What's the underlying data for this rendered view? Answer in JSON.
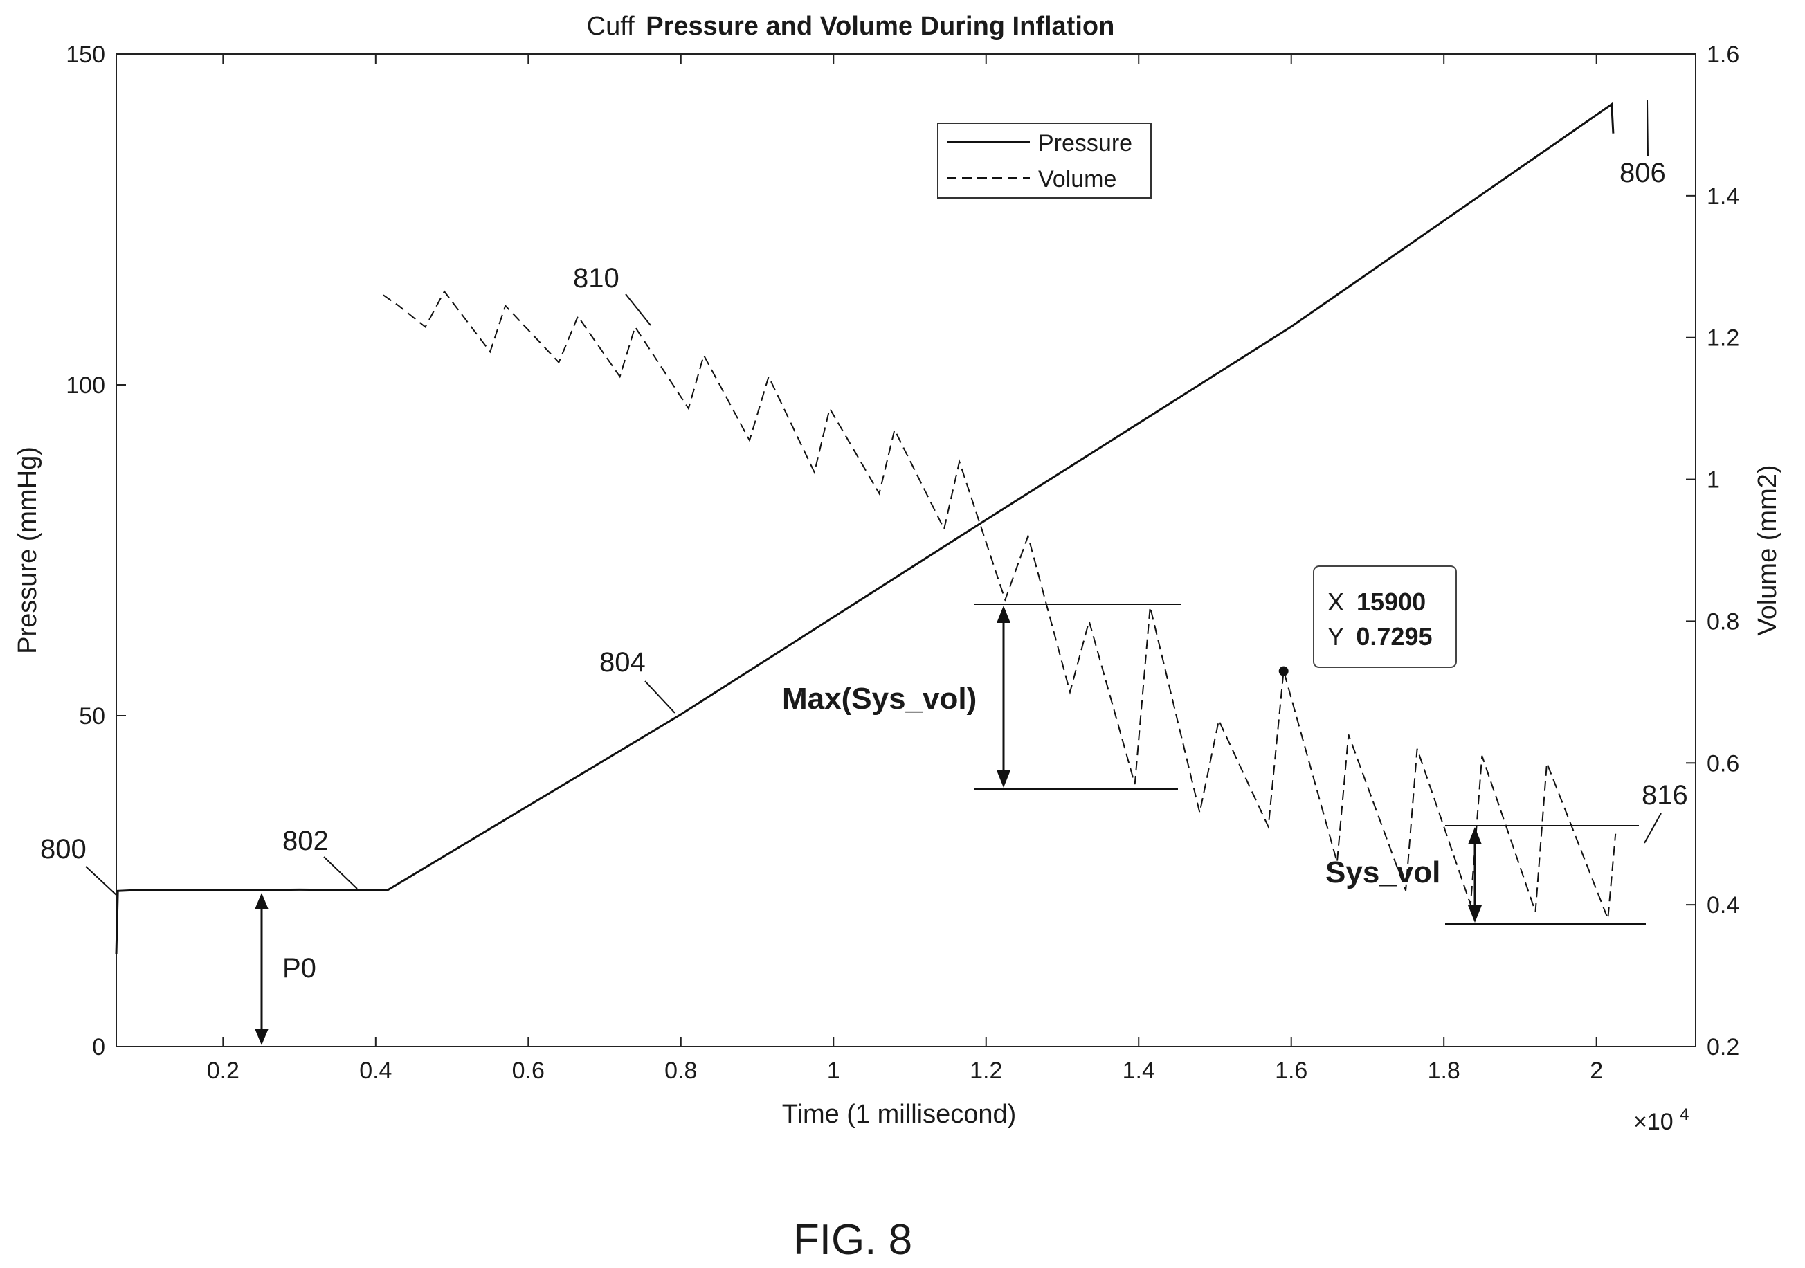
{
  "chart_data": {
    "type": "line",
    "title": "Cuff Pressure and Volume During Inflation",
    "title_prefix": "Cuff",
    "title_main": "Pressure and Volume During Inflation",
    "xlabel": "Time (1 millisecond)",
    "xscale_note": "×10",
    "xscale_exp": "4",
    "ylabel_left": "Pressure (mmHg)",
    "ylabel_right": "Volume (mm2)",
    "xlim": [
      600,
      21300
    ],
    "ylim_left": [
      0,
      150
    ],
    "ylim_right": [
      0.2,
      1.6
    ],
    "x_ticks": [
      {
        "v": 2000,
        "label": "0.2"
      },
      {
        "v": 4000,
        "label": "0.4"
      },
      {
        "v": 6000,
        "label": "0.6"
      },
      {
        "v": 8000,
        "label": "0.8"
      },
      {
        "v": 10000,
        "label": "1"
      },
      {
        "v": 12000,
        "label": "1.2"
      },
      {
        "v": 14000,
        "label": "1.4"
      },
      {
        "v": 16000,
        "label": "1.6"
      },
      {
        "v": 18000,
        "label": "1.8"
      },
      {
        "v": 20000,
        "label": "2"
      }
    ],
    "y_left_ticks": [
      {
        "v": 0,
        "label": "0"
      },
      {
        "v": 50,
        "label": "50"
      },
      {
        "v": 100,
        "label": "100"
      },
      {
        "v": 150,
        "label": "150"
      }
    ],
    "y_right_ticks": [
      {
        "v": 0.2,
        "label": "0.2"
      },
      {
        "v": 0.4,
        "label": "0.4"
      },
      {
        "v": 0.6,
        "label": "0.6"
      },
      {
        "v": 0.8,
        "label": "0.8"
      },
      {
        "v": 1.0,
        "label": "1"
      },
      {
        "v": 1.2,
        "label": "1.2"
      },
      {
        "v": 1.4,
        "label": "1.4"
      },
      {
        "v": 1.6,
        "label": "1.6"
      }
    ],
    "grid": false,
    "legend": "top-center",
    "series": [
      {
        "name": "Pressure",
        "axis": "left",
        "style": "solid",
        "x": [
          600,
          620,
          800,
          2000,
          3000,
          4150,
          8000,
          12000,
          16000,
          20200,
          20220
        ],
        "y": [
          14,
          23.5,
          23.6,
          23.6,
          23.7,
          23.6,
          50.2,
          79.6,
          108.8,
          142.4,
          138
        ]
      },
      {
        "name": "Volume",
        "axis": "right",
        "style": "dashed",
        "x": [
          4100,
          4300,
          4650,
          4900,
          5500,
          5700,
          6400,
          6650,
          7200,
          7400,
          8100,
          8300,
          8900,
          9150,
          9750,
          9950,
          10600,
          10800,
          11450,
          11650,
          12250,
          12550,
          13100,
          13350,
          13950,
          14150,
          14800,
          15050,
          15700,
          15900,
          16600,
          16750,
          17500,
          17650,
          18350,
          18500,
          19200,
          19350,
          20150,
          20250
        ],
        "y": [
          1.26,
          1.245,
          1.215,
          1.265,
          1.18,
          1.245,
          1.165,
          1.23,
          1.145,
          1.215,
          1.1,
          1.175,
          1.055,
          1.145,
          1.01,
          1.1,
          0.98,
          1.07,
          0.93,
          1.025,
          0.83,
          0.92,
          0.7,
          0.8,
          0.57,
          0.82,
          0.53,
          0.66,
          0.51,
          0.73,
          0.46,
          0.64,
          0.42,
          0.62,
          0.4,
          0.61,
          0.39,
          0.6,
          0.38,
          0.5
        ]
      }
    ],
    "annotations": {
      "callouts": [
        {
          "label": "800"
        },
        {
          "label": "802"
        },
        {
          "label": "804"
        },
        {
          "label": "806"
        },
        {
          "label": "810"
        },
        {
          "label": "816"
        }
      ],
      "p0_label": "P0",
      "max_sys_vol_label": "Max(Sys_vol)",
      "sys_vol_label": "Sys_vol",
      "datatip": {
        "x_label": "X",
        "x_value": "15900",
        "y_label": "Y",
        "y_value": "0.7295",
        "x": 15900,
        "y": 0.7295
      }
    }
  },
  "figure_label": "FIG. 8"
}
